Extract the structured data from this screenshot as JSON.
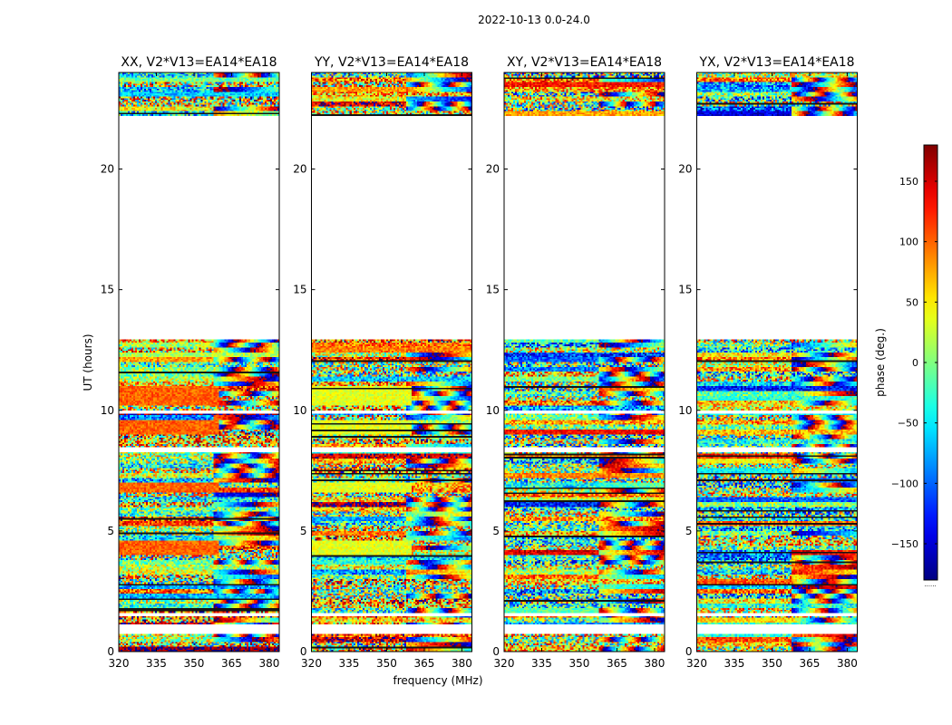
{
  "figure": {
    "suptitle": "2022-10-13 0.0-24.0"
  },
  "chart_data": {
    "type": "heatmap",
    "ylabel": "UT (hours)",
    "xlabel": "frequency (MHz)",
    "xlim": [
      320,
      384
    ],
    "ylim": [
      0,
      24
    ],
    "xticks": [
      320,
      335,
      350,
      365,
      380
    ],
    "yticks": [
      0,
      5,
      10,
      15,
      20
    ],
    "panels": [
      {
        "title": "XX, V2*V13=EA14*EA18",
        "mode": "xx"
      },
      {
        "title": "YY, V2*V13=EA14*EA18",
        "mode": "yy"
      },
      {
        "title": "XY, V2*V13=EA14*EA18",
        "mode": "xy"
      },
      {
        "title": "YX, V2*V13=EA14*EA18",
        "mode": "yx"
      }
    ],
    "data_gaps_hours": [
      [
        12.9,
        22.2
      ],
      [
        0.75,
        1.1
      ],
      [
        1.48,
        1.62
      ],
      [
        8.3,
        8.45
      ],
      [
        9.85,
        10.0
      ]
    ],
    "colorbar": {
      "label": "phase (deg.)",
      "range": [
        -180,
        180
      ],
      "ticks": [
        150,
        100,
        50,
        0,
        -50,
        -100,
        -150
      ],
      "tick_labels": [
        "150",
        "100",
        "50",
        "0",
        "−50",
        "−100",
        "−150"
      ],
      "colormap": "jet",
      "footer": "......"
    }
  }
}
